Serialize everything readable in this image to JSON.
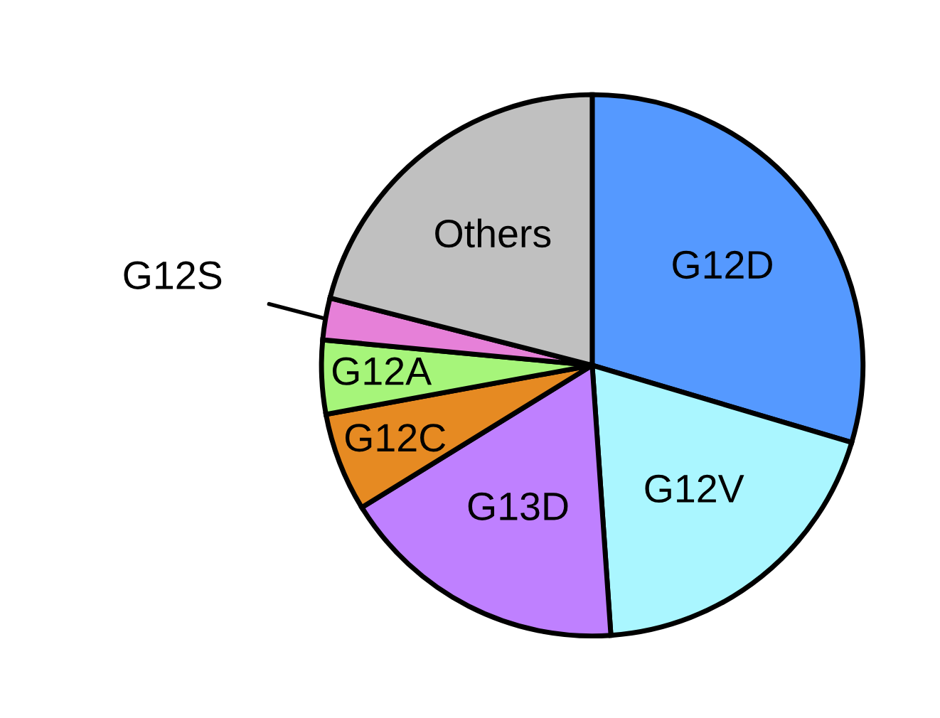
{
  "chart_data": {
    "type": "pie",
    "categories": [
      "G12D",
      "G12V",
      "G13D",
      "G12C",
      "G12A",
      "G12S",
      "Others"
    ],
    "values": [
      29.6,
      19.3,
      17.3,
      5.9,
      4.4,
      2.5,
      21.0
    ],
    "colors": [
      "#5599ff",
      "#aaf6ff",
      "#bf80ff",
      "#e68a22",
      "#a6f57a",
      "#e680d8",
      "#c0c0c0"
    ]
  }
}
